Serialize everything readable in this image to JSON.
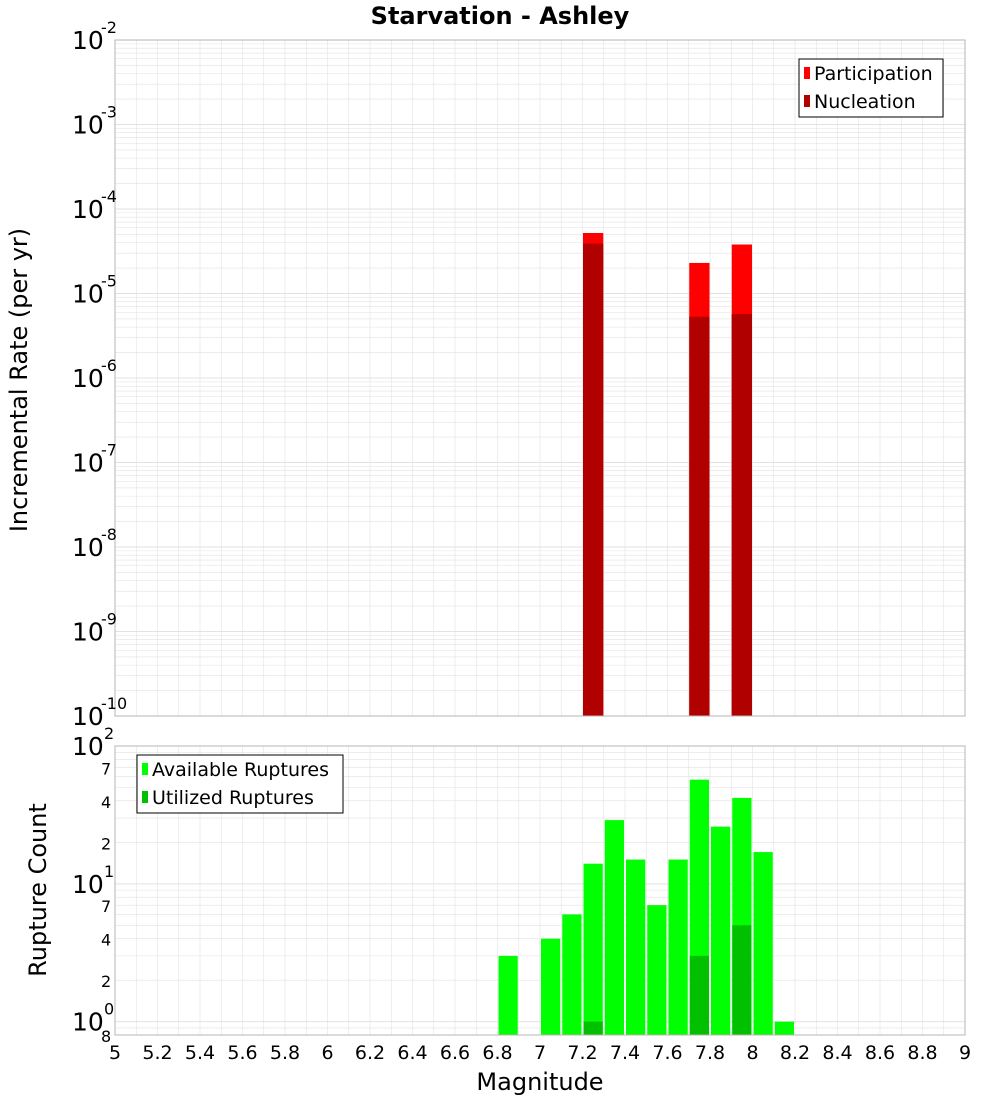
{
  "title": "Starvation - Ashley",
  "colors": {
    "participation": "#ff0000",
    "nucleation": "#b00000",
    "available": "#00ff00",
    "utilized": "#00c000",
    "grid": "#e2e2e2",
    "frame": "#b5b5b5"
  },
  "x_axis": {
    "label": "Magnitude",
    "range": [
      5,
      9
    ],
    "ticks": [
      "5",
      "5.2",
      "5.4",
      "5.6",
      "5.8",
      "6",
      "6.2",
      "6.4",
      "6.6",
      "6.8",
      "7",
      "7.2",
      "7.4",
      "7.6",
      "7.8",
      "8",
      "8.2",
      "8.4",
      "8.6",
      "8.8",
      "9"
    ]
  },
  "chart_data": [
    {
      "type": "bar",
      "name": "rates",
      "ylabel": "Incremental Rate (per yr)",
      "yscale": "log",
      "ylim": [
        1e-10,
        0.01
      ],
      "yticks": [
        {
          "base": "10",
          "exp": "-10",
          "value": 1e-10
        },
        {
          "base": "10",
          "exp": "-9",
          "value": 1e-09
        },
        {
          "base": "10",
          "exp": "-8",
          "value": 1e-08
        },
        {
          "base": "10",
          "exp": "-7",
          "value": 1e-07
        },
        {
          "base": "10",
          "exp": "-6",
          "value": 1e-06
        },
        {
          "base": "10",
          "exp": "-5",
          "value": 1e-05
        },
        {
          "base": "10",
          "exp": "-4",
          "value": 0.0001
        },
        {
          "base": "10",
          "exp": "-3",
          "value": 0.001
        },
        {
          "base": "10",
          "exp": "-2",
          "value": 0.01
        }
      ],
      "bin_width": 0.1,
      "legend": {
        "position": "top-right",
        "entries": [
          "Participation",
          "Nucleation"
        ]
      },
      "series": [
        {
          "name": "Participation",
          "x": [
            7.25,
            7.75,
            7.95
          ],
          "values": [
            5.2e-05,
            2.3e-05,
            3.8e-05
          ]
        },
        {
          "name": "Nucleation",
          "x": [
            7.25,
            7.75,
            7.95
          ],
          "values": [
            3.9e-05,
            5.3e-06,
            5.7e-06
          ]
        }
      ]
    },
    {
      "type": "bar",
      "name": "counts",
      "ylabel": "Rupture Count",
      "yscale": "log",
      "ylim": [
        0.8,
        100
      ],
      "major_ticks": [
        {
          "base": "10",
          "exp": "0",
          "value": 1
        },
        {
          "base": "10",
          "exp": "1",
          "value": 10
        },
        {
          "base": "10",
          "exp": "2",
          "value": 100
        }
      ],
      "minor_ticks": [
        {
          "label": "8",
          "value": 0.8
        },
        {
          "label": "2",
          "value": 2
        },
        {
          "label": "4",
          "value": 4
        },
        {
          "label": "7",
          "value": 7
        },
        {
          "label": "2",
          "value": 20
        },
        {
          "label": "4",
          "value": 40
        },
        {
          "label": "7",
          "value": 70
        }
      ],
      "bin_width": 0.1,
      "legend": {
        "position": "top-left",
        "entries": [
          "Available Ruptures",
          "Utilized Ruptures"
        ]
      },
      "series": [
        {
          "name": "Available Ruptures",
          "x": [
            6.85,
            7.05,
            7.15,
            7.25,
            7.35,
            7.45,
            7.55,
            7.65,
            7.75,
            7.85,
            7.95,
            8.05,
            8.15
          ],
          "values": [
            3,
            4,
            6,
            14,
            29,
            15,
            7,
            15,
            57,
            26,
            42,
            17,
            1
          ]
        },
        {
          "name": "Utilized Ruptures",
          "x": [
            7.25,
            7.75,
            7.95
          ],
          "values": [
            1,
            3,
            5
          ]
        }
      ]
    }
  ]
}
